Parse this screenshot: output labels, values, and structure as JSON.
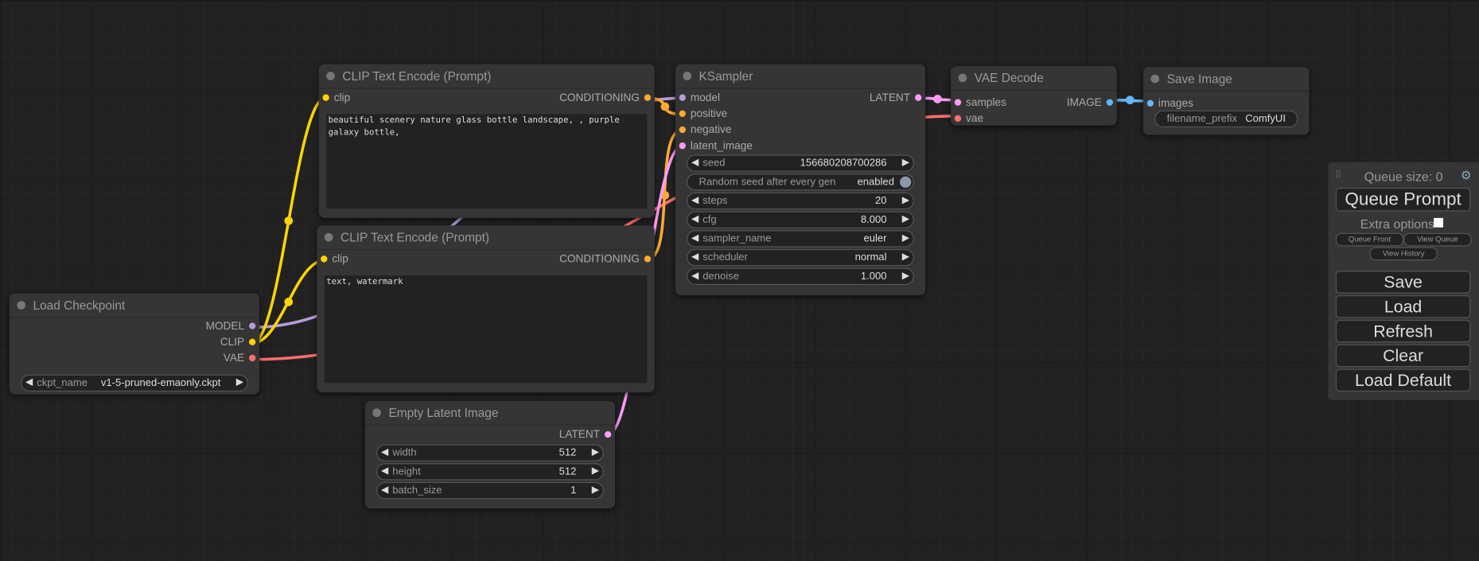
{
  "colors": {
    "model": "#b39ddb",
    "clip": "#ffd500",
    "vae": "#ff6e6e",
    "conditioning": "#ffa931",
    "latent": "#ff9cf9",
    "image": "#64b5f6"
  },
  "nodes": [
    {
      "title": "Load Checkpoint",
      "inputs": [],
      "outputs": [
        {
          "label": "MODEL",
          "type": "model"
        },
        {
          "label": "CLIP",
          "type": "clip"
        },
        {
          "label": "VAE",
          "type": "vae"
        }
      ],
      "widgets": [
        {
          "label": "ckpt_name",
          "value": "v1-5-pruned-emaonly.ckpt",
          "kind": "combo"
        }
      ]
    },
    {
      "title": "CLIP Text Encode (Prompt)",
      "inputs": [
        {
          "label": "clip",
          "type": "clip"
        }
      ],
      "outputs": [
        {
          "label": "CONDITIONING",
          "type": "conditioning"
        }
      ],
      "text": "beautiful scenery nature glass bottle landscape, , purple galaxy bottle,"
    },
    {
      "title": "CLIP Text Encode (Prompt)",
      "inputs": [
        {
          "label": "clip",
          "type": "clip"
        }
      ],
      "outputs": [
        {
          "label": "CONDITIONING",
          "type": "conditioning"
        }
      ],
      "text": "text, watermark"
    },
    {
      "title": "Empty Latent Image",
      "inputs": [],
      "outputs": [
        {
          "label": "LATENT",
          "type": "latent"
        }
      ],
      "widgets": [
        {
          "label": "width",
          "value": "512",
          "kind": "number"
        },
        {
          "label": "height",
          "value": "512",
          "kind": "number"
        },
        {
          "label": "batch_size",
          "value": "1",
          "kind": "number"
        }
      ]
    },
    {
      "title": "KSampler",
      "inputs": [
        {
          "label": "model",
          "type": "model"
        },
        {
          "label": "positive",
          "type": "conditioning"
        },
        {
          "label": "negative",
          "type": "conditioning"
        },
        {
          "label": "latent_image",
          "type": "latent"
        }
      ],
      "outputs": [
        {
          "label": "LATENT",
          "type": "latent"
        }
      ],
      "widgets": [
        {
          "label": "seed",
          "value": "156680208700286",
          "kind": "number"
        },
        {
          "label": "Random seed after every gen",
          "value": "enabled",
          "kind": "toggle"
        },
        {
          "label": "steps",
          "value": "20",
          "kind": "number"
        },
        {
          "label": "cfg",
          "value": "8.000",
          "kind": "number"
        },
        {
          "label": "sampler_name",
          "value": "euler",
          "kind": "combo"
        },
        {
          "label": "scheduler",
          "value": "normal",
          "kind": "combo"
        },
        {
          "label": "denoise",
          "value": "1.000",
          "kind": "number"
        }
      ]
    },
    {
      "title": "VAE Decode",
      "inputs": [
        {
          "label": "samples",
          "type": "latent"
        },
        {
          "label": "vae",
          "type": "vae"
        }
      ],
      "outputs": [
        {
          "label": "IMAGE",
          "type": "image"
        }
      ]
    },
    {
      "title": "Save Image",
      "inputs": [
        {
          "label": "images",
          "type": "image"
        }
      ],
      "outputs": [],
      "widgets": [
        {
          "label": "filename_prefix",
          "value": "ComfyUI",
          "kind": "text"
        }
      ]
    }
  ],
  "panel": {
    "queue_size": "Queue size: 0",
    "queue_prompt": "Queue Prompt",
    "extra_options": "Extra options",
    "extra_checked": false,
    "queue_front": "Queue Front",
    "view_queue": "View Queue",
    "view_history": "View History",
    "buttons": [
      "Save",
      "Load",
      "Refresh",
      "Clear",
      "Load Default"
    ],
    "settings_icon": "gear-icon",
    "drag_icon": "drag-handle-icon"
  }
}
